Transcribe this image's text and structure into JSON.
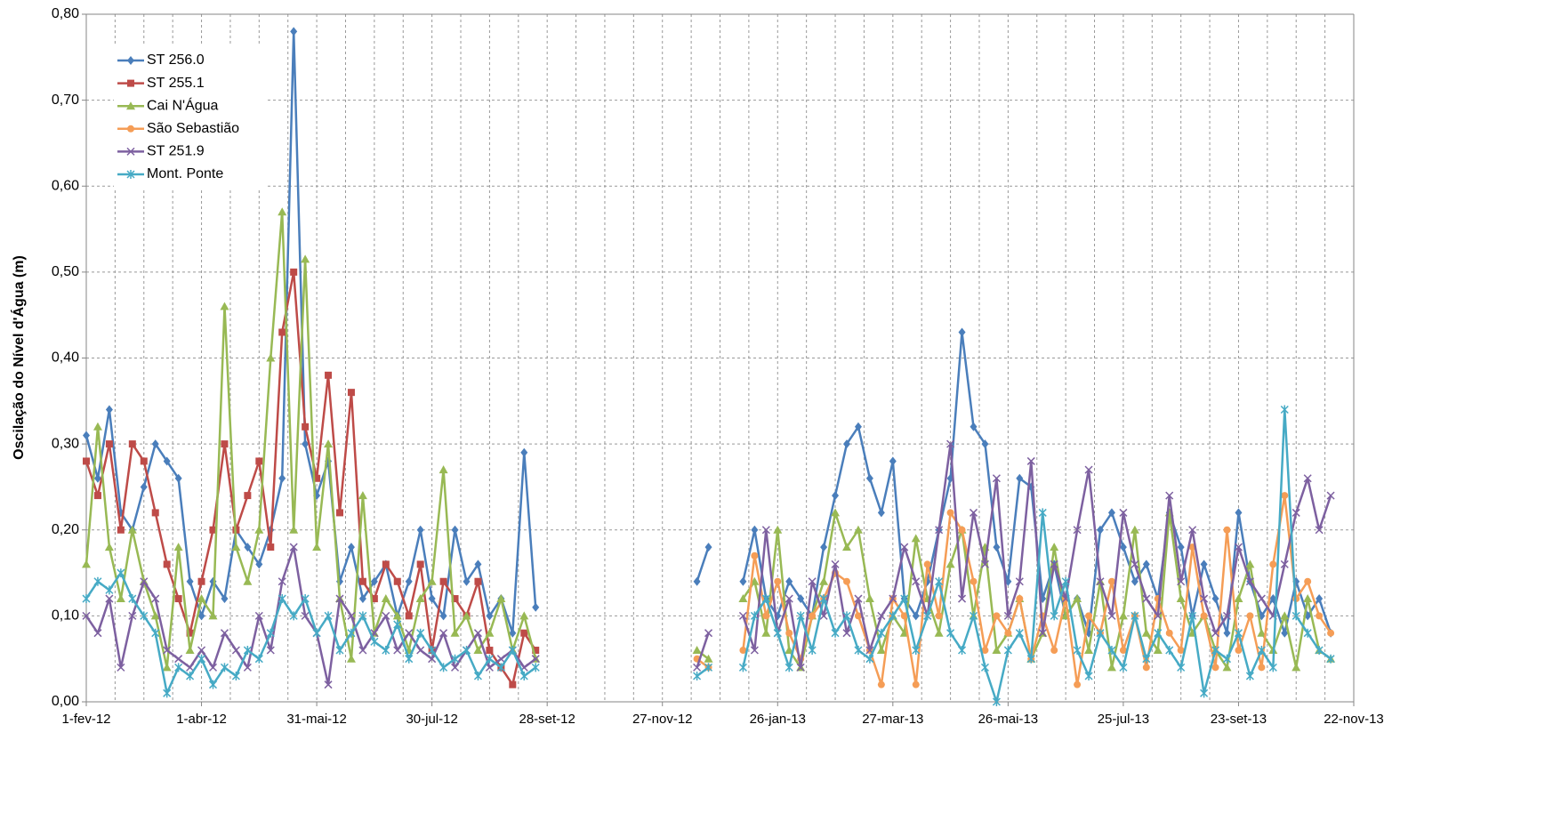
{
  "chart_data": {
    "type": "line",
    "y_label": "Oscilação do Nível d'Água (m)",
    "legend": "upper left",
    "grid": true,
    "xlim": [
      "2012-02-01",
      "2013-11-22"
    ],
    "xticks": [
      {
        "value": "2012-02-01",
        "label": "1-fev-12"
      },
      {
        "value": "2012-04-01",
        "label": "1-abr-12"
      },
      {
        "value": "2012-05-31",
        "label": "31-mai-12"
      },
      {
        "value": "2012-07-30",
        "label": "30-jul-12"
      },
      {
        "value": "2012-09-28",
        "label": "28-set-12"
      },
      {
        "value": "2012-11-27",
        "label": "27-nov-12"
      },
      {
        "value": "2013-01-26",
        "label": "26-jan-13"
      },
      {
        "value": "2013-03-27",
        "label": "27-mar-13"
      },
      {
        "value": "2013-05-26",
        "label": "26-mai-13"
      },
      {
        "value": "2013-07-25",
        "label": "25-jul-13"
      },
      {
        "value": "2013-09-23",
        "label": "23-set-13"
      },
      {
        "value": "2013-11-22",
        "label": "22-nov-13"
      }
    ],
    "ylim": [
      0,
      0.8
    ],
    "yticks": [
      {
        "value": 0,
        "label": "0,00"
      },
      {
        "value": 0.1,
        "label": "0,10"
      },
      {
        "value": 0.2,
        "label": "0,20"
      },
      {
        "value": 0.3,
        "label": "0,30"
      },
      {
        "value": 0.4,
        "label": "0,40"
      },
      {
        "value": 0.5,
        "label": "0,50"
      },
      {
        "value": 0.6,
        "label": "0,60"
      },
      {
        "value": 0.7,
        "label": "0,70"
      },
      {
        "value": 0.8,
        "label": "0,80"
      }
    ],
    "x": [
      "2012-02-01",
      "2012-02-07",
      "2012-02-13",
      "2012-02-19",
      "2012-02-25",
      "2012-03-02",
      "2012-03-08",
      "2012-03-14",
      "2012-03-20",
      "2012-03-26",
      "2012-04-01",
      "2012-04-07",
      "2012-04-13",
      "2012-04-19",
      "2012-04-25",
      "2012-05-01",
      "2012-05-07",
      "2012-05-13",
      "2012-05-19",
      "2012-05-25",
      "2012-05-31",
      "2012-06-06",
      "2012-06-12",
      "2012-06-18",
      "2012-06-24",
      "2012-06-30",
      "2012-07-06",
      "2012-07-12",
      "2012-07-18",
      "2012-07-24",
      "2012-07-30",
      "2012-08-05",
      "2012-08-11",
      "2012-08-17",
      "2012-08-23",
      "2012-08-29",
      "2012-09-04",
      "2012-09-10",
      "2012-09-16",
      "2012-09-22",
      "2012-09-28",
      "2012-10-04",
      "2012-10-10",
      "2012-10-16",
      "2012-10-22",
      "2012-10-28",
      "2012-11-03",
      "2012-11-09",
      "2012-11-15",
      "2012-11-21",
      "2012-11-27",
      "2012-12-03",
      "2012-12-09",
      "2012-12-15",
      "2012-12-21",
      "2012-12-27",
      "2013-01-02",
      "2013-01-08",
      "2013-01-14",
      "2013-01-20",
      "2013-01-26",
      "2013-02-01",
      "2013-02-07",
      "2013-02-13",
      "2013-02-19",
      "2013-02-25",
      "2013-03-03",
      "2013-03-09",
      "2013-03-15",
      "2013-03-21",
      "2013-03-27",
      "2013-04-02",
      "2013-04-08",
      "2013-04-14",
      "2013-04-20",
      "2013-04-26",
      "2013-05-02",
      "2013-05-08",
      "2013-05-14",
      "2013-05-20",
      "2013-05-26",
      "2013-06-01",
      "2013-06-07",
      "2013-06-13",
      "2013-06-19",
      "2013-06-25",
      "2013-07-01",
      "2013-07-07",
      "2013-07-13",
      "2013-07-19",
      "2013-07-25",
      "2013-07-31",
      "2013-08-06",
      "2013-08-12",
      "2013-08-18",
      "2013-08-24",
      "2013-08-30",
      "2013-09-05",
      "2013-09-11",
      "2013-09-17",
      "2013-09-23",
      "2013-09-29",
      "2013-10-05",
      "2013-10-11",
      "2013-10-17",
      "2013-10-23",
      "2013-10-29",
      "2013-11-04",
      "2013-11-10",
      "2013-11-16",
      "2013-11-22"
    ],
    "series": [
      {
        "name": "ST 256.0",
        "color": "#4a7ebb",
        "marker": "diamond",
        "values": [
          0.31,
          0.26,
          0.34,
          0.22,
          0.2,
          0.25,
          0.3,
          0.28,
          0.26,
          0.14,
          0.1,
          0.14,
          0.12,
          0.2,
          0.18,
          0.16,
          0.2,
          0.26,
          0.78,
          0.3,
          0.24,
          0.28,
          0.14,
          0.18,
          0.12,
          0.14,
          0.16,
          0.1,
          0.14,
          0.2,
          0.12,
          0.1,
          0.2,
          0.14,
          0.16,
          0.1,
          0.12,
          0.08,
          0.29,
          0.11,
          null,
          null,
          null,
          null,
          null,
          null,
          null,
          null,
          null,
          null,
          null,
          null,
          null,
          0.14,
          0.18,
          null,
          null,
          0.14,
          0.2,
          0.12,
          0.1,
          0.14,
          0.12,
          0.1,
          0.18,
          0.24,
          0.3,
          0.32,
          0.26,
          0.22,
          0.28,
          0.12,
          0.1,
          0.14,
          0.2,
          0.26,
          0.43,
          0.32,
          0.3,
          0.18,
          0.14,
          0.26,
          0.25,
          0.12,
          0.16,
          0.1,
          0.12,
          0.08,
          0.2,
          0.22,
          0.18,
          0.14,
          0.16,
          0.12,
          0.22,
          0.18,
          0.1,
          0.16,
          0.12,
          0.08,
          0.22,
          0.14,
          0.1,
          0.12,
          0.08,
          0.14,
          0.1,
          0.12,
          0.08,
          null,
          null
        ]
      },
      {
        "name": "ST 255.1",
        "color": "#be4b48",
        "marker": "square",
        "values": [
          0.28,
          0.24,
          0.3,
          0.2,
          0.3,
          0.28,
          0.22,
          0.16,
          0.12,
          0.08,
          0.14,
          0.2,
          0.3,
          0.2,
          0.24,
          0.28,
          0.18,
          0.43,
          0.5,
          0.32,
          0.26,
          0.38,
          0.22,
          0.36,
          0.14,
          0.12,
          0.16,
          0.14,
          0.1,
          0.16,
          0.06,
          0.14,
          0.12,
          0.1,
          0.14,
          0.06,
          0.04,
          0.02,
          0.08,
          0.06,
          null,
          null,
          null,
          null,
          null,
          null,
          null,
          null,
          null,
          null,
          null,
          null,
          null,
          null,
          null,
          null,
          null,
          null,
          null,
          null,
          null,
          null,
          null,
          null,
          null,
          null,
          null,
          null,
          null,
          null,
          null,
          null,
          null,
          null,
          null,
          null,
          null,
          null,
          null,
          null,
          null,
          null,
          null,
          null,
          null,
          null,
          null,
          null,
          null,
          null,
          null,
          null,
          null,
          null,
          null,
          null,
          null,
          null,
          null,
          null,
          null,
          null,
          null,
          null,
          null,
          null,
          null,
          null,
          null,
          null,
          null
        ]
      },
      {
        "name": "Cai N'Água",
        "color": "#98b954",
        "marker": "triangle",
        "values": [
          0.16,
          0.32,
          0.18,
          0.12,
          0.2,
          0.14,
          0.1,
          0.04,
          0.18,
          0.06,
          0.12,
          0.1,
          0.46,
          0.18,
          0.14,
          0.2,
          0.4,
          0.57,
          0.2,
          0.515,
          0.18,
          0.3,
          0.12,
          0.05,
          0.24,
          0.08,
          0.12,
          0.1,
          0.06,
          0.12,
          0.14,
          0.27,
          0.08,
          0.1,
          0.06,
          0.08,
          0.12,
          0.06,
          0.1,
          0.05,
          null,
          null,
          null,
          null,
          null,
          null,
          null,
          null,
          null,
          null,
          null,
          null,
          null,
          0.06,
          0.05,
          null,
          null,
          0.12,
          0.14,
          0.08,
          0.2,
          0.06,
          0.04,
          0.1,
          0.14,
          0.22,
          0.18,
          0.2,
          0.12,
          0.06,
          0.1,
          0.08,
          0.19,
          0.12,
          0.08,
          0.16,
          0.2,
          0.1,
          0.18,
          0.06,
          0.08,
          0.12,
          0.05,
          0.08,
          0.18,
          0.1,
          0.12,
          0.06,
          0.14,
          0.04,
          0.1,
          0.2,
          0.08,
          0.06,
          0.22,
          0.12,
          0.08,
          0.1,
          0.06,
          0.04,
          0.12,
          0.16,
          0.08,
          0.06,
          0.1,
          0.04,
          0.12,
          0.06,
          0.05,
          null,
          null
        ]
      },
      {
        "name": "São Sebastião",
        "color": "#f59d56",
        "marker": "circle",
        "values": [
          null,
          null,
          null,
          null,
          null,
          null,
          null,
          null,
          null,
          null,
          null,
          null,
          null,
          null,
          null,
          null,
          null,
          null,
          null,
          null,
          null,
          null,
          null,
          null,
          null,
          null,
          null,
          null,
          null,
          null,
          null,
          null,
          null,
          null,
          null,
          null,
          null,
          null,
          null,
          null,
          null,
          null,
          null,
          null,
          null,
          null,
          null,
          null,
          null,
          null,
          null,
          null,
          null,
          0.05,
          0.04,
          null,
          null,
          0.06,
          0.17,
          0.1,
          0.14,
          0.08,
          0.05,
          0.1,
          0.12,
          0.15,
          0.14,
          0.1,
          0.06,
          0.02,
          0.12,
          0.1,
          0.02,
          0.16,
          0.1,
          0.22,
          0.2,
          0.14,
          0.06,
          0.1,
          0.08,
          0.12,
          0.05,
          0.1,
          0.06,
          0.12,
          0.02,
          0.1,
          0.08,
          0.14,
          0.06,
          0.1,
          0.04,
          0.12,
          0.08,
          0.06,
          0.18,
          0.1,
          0.04,
          0.2,
          0.06,
          0.1,
          0.04,
          0.16,
          0.24,
          0.12,
          0.14,
          0.1,
          0.08,
          null,
          null
        ]
      },
      {
        "name": "ST 251.9",
        "color": "#7d60a0",
        "marker": "x",
        "values": [
          0.1,
          0.08,
          0.12,
          0.04,
          0.1,
          0.14,
          0.12,
          0.06,
          0.05,
          0.04,
          0.06,
          0.04,
          0.08,
          0.06,
          0.04,
          0.1,
          0.06,
          0.14,
          0.18,
          0.1,
          0.08,
          0.02,
          0.12,
          0.1,
          0.06,
          0.08,
          0.1,
          0.06,
          0.08,
          0.06,
          0.05,
          0.08,
          0.04,
          0.06,
          0.08,
          0.04,
          0.05,
          0.06,
          0.04,
          0.05,
          null,
          null,
          null,
          null,
          null,
          null,
          null,
          null,
          null,
          null,
          null,
          null,
          null,
          0.04,
          0.08,
          null,
          null,
          0.1,
          0.06,
          0.2,
          0.08,
          0.12,
          0.04,
          0.14,
          0.1,
          0.16,
          0.08,
          0.12,
          0.06,
          0.1,
          0.12,
          0.18,
          0.14,
          0.1,
          0.2,
          0.3,
          0.12,
          0.22,
          0.16,
          0.26,
          0.1,
          0.14,
          0.28,
          0.08,
          0.16,
          0.12,
          0.2,
          0.27,
          0.14,
          0.1,
          0.22,
          0.16,
          0.12,
          0.1,
          0.24,
          0.14,
          0.2,
          0.12,
          0.08,
          0.1,
          0.18,
          0.14,
          0.12,
          0.1,
          0.16,
          0.22,
          0.26,
          0.2,
          0.24,
          null,
          null
        ]
      },
      {
        "name": "Mont. Ponte",
        "color": "#46aac5",
        "marker": "star",
        "values": [
          0.12,
          0.14,
          0.13,
          0.15,
          0.12,
          0.1,
          0.08,
          0.01,
          0.04,
          0.03,
          0.05,
          0.02,
          0.04,
          0.03,
          0.06,
          0.05,
          0.08,
          0.12,
          0.1,
          0.12,
          0.08,
          0.1,
          0.06,
          0.08,
          0.1,
          0.07,
          0.06,
          0.09,
          0.05,
          0.08,
          0.06,
          0.04,
          0.05,
          0.06,
          0.03,
          0.05,
          0.04,
          0.06,
          0.03,
          0.04,
          null,
          null,
          null,
          null,
          null,
          null,
          null,
          null,
          null,
          null,
          null,
          null,
          null,
          0.03,
          0.04,
          null,
          null,
          0.04,
          0.1,
          0.12,
          0.08,
          0.04,
          0.1,
          0.06,
          0.12,
          0.08,
          0.1,
          0.06,
          0.05,
          0.08,
          0.1,
          0.12,
          0.06,
          0.1,
          0.14,
          0.08,
          0.06,
          0.1,
          0.04,
          0,
          0.06,
          0.08,
          0.05,
          0.22,
          0.1,
          0.14,
          0.06,
          0.03,
          0.08,
          0.06,
          0.04,
          0.1,
          0.05,
          0.08,
          0.06,
          0.04,
          0.1,
          0.01,
          0.06,
          0.05,
          0.08,
          0.03,
          0.06,
          0.04,
          0.34,
          0.1,
          0.08,
          0.06,
          0.05,
          null,
          null
        ]
      }
    ]
  }
}
